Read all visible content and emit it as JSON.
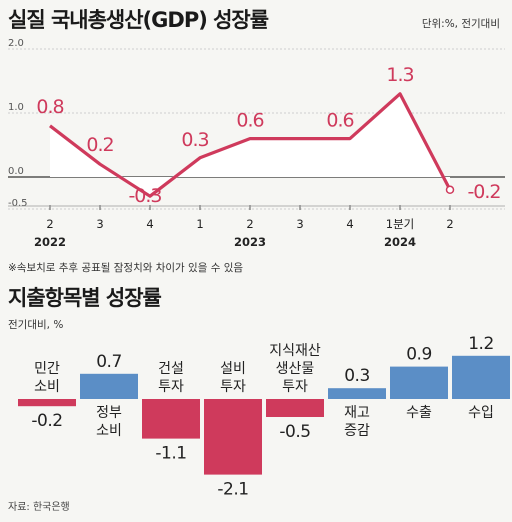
{
  "title1": "실질 국내총생산(GDP) 성장률",
  "unit1": "단위:%, 전기대비",
  "note1": "※속보치로 추후 공표될 잠정치와 차이가 있을 수 있음",
  "title2": "지출항목별 성장률",
  "unit2": "전기대비, %",
  "source": "자료: 한국은행",
  "colors": {
    "line": "#cf3a5c",
    "pos": "#5b8ec6",
    "neg": "#cf3a5c"
  },
  "chart_data": [
    {
      "type": "line",
      "title": "실질 국내총생산(GDP) 성장률",
      "unit": "단위:%, 전기대비",
      "yticks": [
        "2.0",
        "1.0",
        "0.0",
        "-0.5"
      ],
      "ylim": [
        -0.5,
        2.0
      ],
      "x": [
        "2",
        "3",
        "4",
        "1",
        "2",
        "3",
        "4",
        "1분기",
        "2"
      ],
      "x_years": [
        "2022",
        "2023",
        "2024"
      ],
      "values": [
        0.8,
        0.2,
        -0.3,
        0.3,
        0.6,
        0.6,
        0.6,
        1.3,
        -0.2
      ],
      "value_labels": [
        "0.8",
        "0.2",
        "-0.3",
        "0.3",
        "0.6",
        "",
        "0.6",
        "1.3",
        "-0.2"
      ],
      "grid": true
    },
    {
      "type": "bar",
      "title": "지출항목별 성장률",
      "unit": "전기대비, %",
      "categories": [
        [
          "민간",
          "소비"
        ],
        [
          "정부",
          "소비"
        ],
        [
          "건설",
          "투자"
        ],
        [
          "설비",
          "투자"
        ],
        [
          "지식재산",
          "생산물",
          "투자"
        ],
        [
          "재고",
          "증감"
        ],
        [
          "수출"
        ],
        [
          "수입"
        ]
      ],
      "values": [
        -0.2,
        0.7,
        -1.1,
        -2.1,
        -0.5,
        0.3,
        0.9,
        1.2
      ],
      "value_labels": [
        "-0.2",
        "0.7",
        "-1.1",
        "-2.1",
        "-0.5",
        "0.3",
        "0.9",
        "1.2"
      ]
    }
  ]
}
